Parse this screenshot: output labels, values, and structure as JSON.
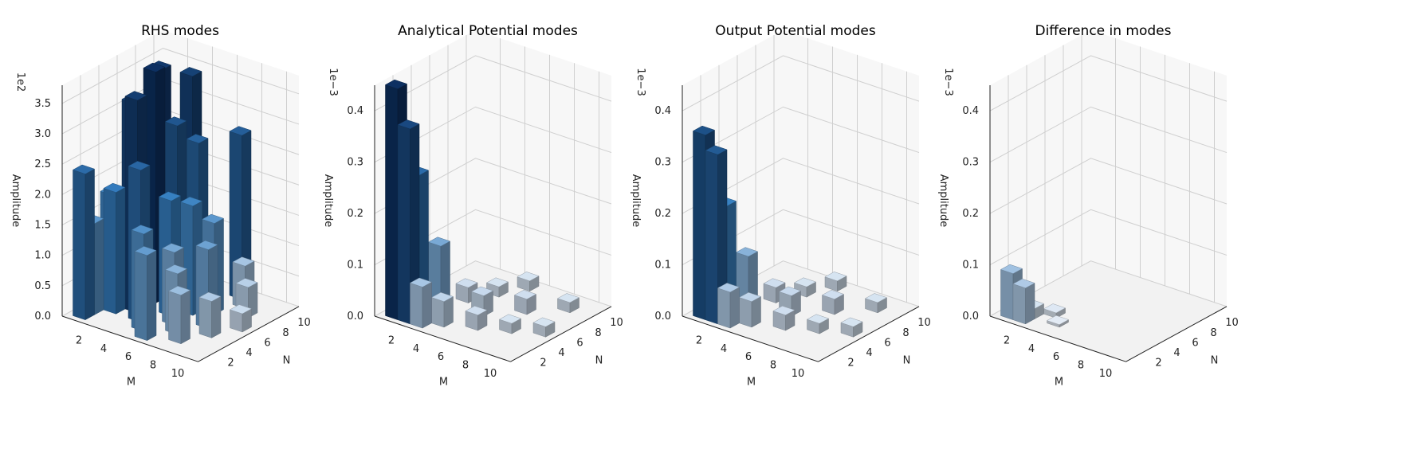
{
  "figure": {
    "chart_data": [
      {
        "type": "bar3d",
        "title": "RHS modes",
        "xlabel": "M",
        "ylabel": "N",
        "zlabel": "Amplitude",
        "z_multiplier": "1e2",
        "x_ticks": [
          "2",
          "4",
          "6",
          "8",
          "10"
        ],
        "y_ticks": [
          "2",
          "4",
          "6",
          "8",
          "10"
        ],
        "z_ticks": [
          "0.0",
          "0.5",
          "1.0",
          "1.5",
          "2.0",
          "2.5",
          "3.0",
          "3.5"
        ],
        "zlim": [
          0,
          3.8
        ],
        "bars": [
          {
            "m": 1,
            "n": 1,
            "value": 2.4
          },
          {
            "m": 1,
            "n": 2,
            "value": 1.5
          },
          {
            "m": 1,
            "n": 4,
            "value": 1.8
          },
          {
            "m": 2,
            "n": 3,
            "value": 2.0
          },
          {
            "m": 2,
            "n": 5,
            "value": 3.3
          },
          {
            "m": 2,
            "n": 8,
            "value": 3.6
          },
          {
            "m": 3,
            "n": 4,
            "value": 3.5
          },
          {
            "m": 3,
            "n": 6,
            "value": 3.8
          },
          {
            "m": 3,
            "n": 10,
            "value": 3.4
          },
          {
            "m": 4,
            "n": 3,
            "value": 2.5
          },
          {
            "m": 4,
            "n": 7,
            "value": 2.9
          },
          {
            "m": 4,
            "n": 9,
            "value": 2.2
          },
          {
            "m": 5,
            "n": 2,
            "value": 1.6
          },
          {
            "m": 5,
            "n": 5,
            "value": 1.9
          },
          {
            "m": 5,
            "n": 8,
            "value": 2.6
          },
          {
            "m": 6,
            "n": 1,
            "value": 1.4
          },
          {
            "m": 6,
            "n": 4,
            "value": 1.2
          },
          {
            "m": 6,
            "n": 6,
            "value": 1.8
          },
          {
            "m": 7,
            "n": 3,
            "value": 1.0
          },
          {
            "m": 7,
            "n": 7,
            "value": 1.5
          },
          {
            "m": 7,
            "n": 10,
            "value": 2.7
          },
          {
            "m": 8,
            "n": 2,
            "value": 0.8
          },
          {
            "m": 8,
            "n": 5,
            "value": 1.3
          },
          {
            "m": 8,
            "n": 9,
            "value": 0.7
          },
          {
            "m": 9,
            "n": 4,
            "value": 0.6
          },
          {
            "m": 9,
            "n": 8,
            "value": 0.5
          },
          {
            "m": 10,
            "n": 6,
            "value": 0.3
          }
        ]
      },
      {
        "type": "bar3d",
        "title": "Analytical Potential modes",
        "xlabel": "M",
        "ylabel": "N",
        "zlabel": "Amplitude",
        "z_multiplier": "1e−3",
        "x_ticks": [
          "2",
          "4",
          "6",
          "8",
          "10"
        ],
        "y_ticks": [
          "2",
          "4",
          "6",
          "8",
          "10"
        ],
        "z_ticks": [
          "0.0",
          "0.1",
          "0.2",
          "0.3",
          "0.4"
        ],
        "zlim": [
          0,
          0.45
        ],
        "bars": [
          {
            "m": 1,
            "n": 1,
            "value": 0.45
          },
          {
            "m": 1,
            "n": 2,
            "value": 0.36
          },
          {
            "m": 2,
            "n": 1,
            "value": 0.38
          },
          {
            "m": 2,
            "n": 2,
            "value": 0.28
          },
          {
            "m": 3,
            "n": 3,
            "value": 0.14
          },
          {
            "m": 1,
            "n": 3,
            "value": 0.12
          },
          {
            "m": 3,
            "n": 1,
            "value": 0.08
          },
          {
            "m": 4,
            "n": 2,
            "value": 0.05
          },
          {
            "m": 2,
            "n": 4,
            "value": 0.05
          },
          {
            "m": 5,
            "n": 5,
            "value": 0.04
          },
          {
            "m": 6,
            "n": 3,
            "value": 0.03
          },
          {
            "m": 3,
            "n": 6,
            "value": 0.03
          },
          {
            "m": 7,
            "n": 7,
            "value": 0.03
          },
          {
            "m": 8,
            "n": 4,
            "value": 0.02
          },
          {
            "m": 4,
            "n": 8,
            "value": 0.02
          },
          {
            "m": 9,
            "n": 9,
            "value": 0.02
          },
          {
            "m": 10,
            "n": 5,
            "value": 0.02
          },
          {
            "m": 5,
            "n": 10,
            "value": 0.02
          }
        ]
      },
      {
        "type": "bar3d",
        "title": "Output Potential modes",
        "xlabel": "M",
        "ylabel": "N",
        "zlabel": "Amplitude",
        "z_multiplier": "1e−3",
        "x_ticks": [
          "2",
          "4",
          "6",
          "8",
          "10"
        ],
        "y_ticks": [
          "2",
          "4",
          "6",
          "8",
          "10"
        ],
        "z_ticks": [
          "0.0",
          "0.1",
          "0.2",
          "0.3",
          "0.4"
        ],
        "zlim": [
          0,
          0.45
        ],
        "bars": [
          {
            "m": 1,
            "n": 1,
            "value": 0.36
          },
          {
            "m": 1,
            "n": 2,
            "value": 0.3
          },
          {
            "m": 2,
            "n": 1,
            "value": 0.33
          },
          {
            "m": 2,
            "n": 2,
            "value": 0.22
          },
          {
            "m": 3,
            "n": 3,
            "value": 0.12
          },
          {
            "m": 1,
            "n": 3,
            "value": 0.1
          },
          {
            "m": 3,
            "n": 1,
            "value": 0.07
          },
          {
            "m": 4,
            "n": 2,
            "value": 0.05
          },
          {
            "m": 2,
            "n": 4,
            "value": 0.05
          },
          {
            "m": 5,
            "n": 5,
            "value": 0.04
          },
          {
            "m": 6,
            "n": 3,
            "value": 0.03
          },
          {
            "m": 3,
            "n": 6,
            "value": 0.03
          },
          {
            "m": 7,
            "n": 7,
            "value": 0.03
          },
          {
            "m": 8,
            "n": 4,
            "value": 0.02
          },
          {
            "m": 4,
            "n": 8,
            "value": 0.02
          },
          {
            "m": 9,
            "n": 9,
            "value": 0.02
          },
          {
            "m": 10,
            "n": 5,
            "value": 0.02
          },
          {
            "m": 5,
            "n": 10,
            "value": 0.02
          }
        ]
      },
      {
        "type": "bar3d",
        "title": "Difference in modes",
        "xlabel": "M",
        "ylabel": "N",
        "zlabel": "Amplitude",
        "z_multiplier": "1e−3",
        "x_ticks": [
          "2",
          "4",
          "6",
          "8",
          "10"
        ],
        "y_ticks": [
          "2",
          "4",
          "6",
          "8",
          "10"
        ],
        "z_ticks": [
          "0.0",
          "0.1",
          "0.2",
          "0.3",
          "0.4"
        ],
        "zlim": [
          0,
          0.45
        ],
        "bars": [
          {
            "m": 1,
            "n": 1,
            "value": 0.09
          },
          {
            "m": 2,
            "n": 1,
            "value": 0.07
          },
          {
            "m": 1,
            "n": 2,
            "value": 0.03
          },
          {
            "m": 2,
            "n": 2,
            "value": 0.02
          },
          {
            "m": 3,
            "n": 3,
            "value": 0.01
          },
          {
            "m": 4,
            "n": 2,
            "value": 0.005
          }
        ]
      }
    ],
    "colors": {
      "high": "#0b2a55",
      "mid": "#2f6fa8",
      "low": "#c8ced6",
      "pane_floor": "#f2f2f2",
      "pane_wall": "#f7f7f7",
      "grid": "#cfcfcf"
    }
  }
}
